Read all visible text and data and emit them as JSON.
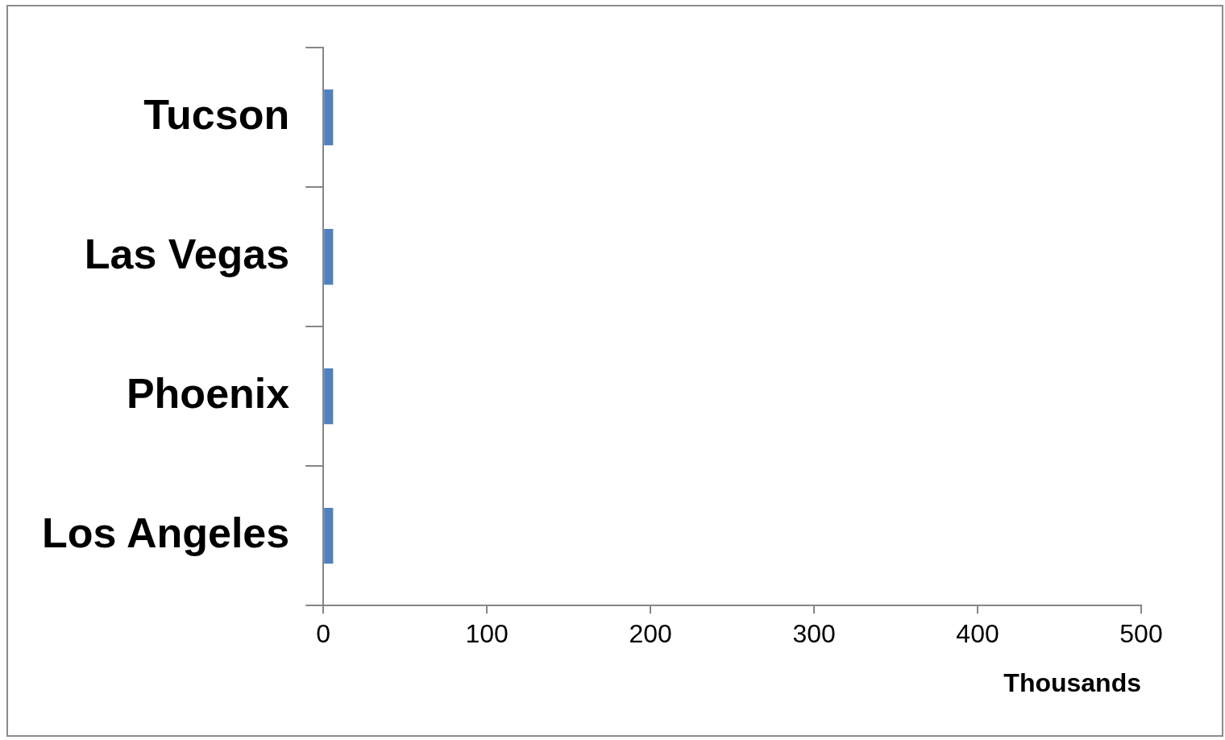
{
  "chart_data": {
    "type": "bar",
    "orientation": "horizontal",
    "categories": [
      "Tucson",
      "Las Vegas",
      "Phoenix",
      "Los Angeles"
    ],
    "values": [
      6,
      6,
      6,
      6
    ],
    "color": "#4f81bd",
    "xlabel": "Thousands",
    "xlim": [
      0,
      500
    ],
    "xticks": [
      0,
      100,
      200,
      300,
      400,
      500
    ],
    "grid": false,
    "legend": false
  }
}
